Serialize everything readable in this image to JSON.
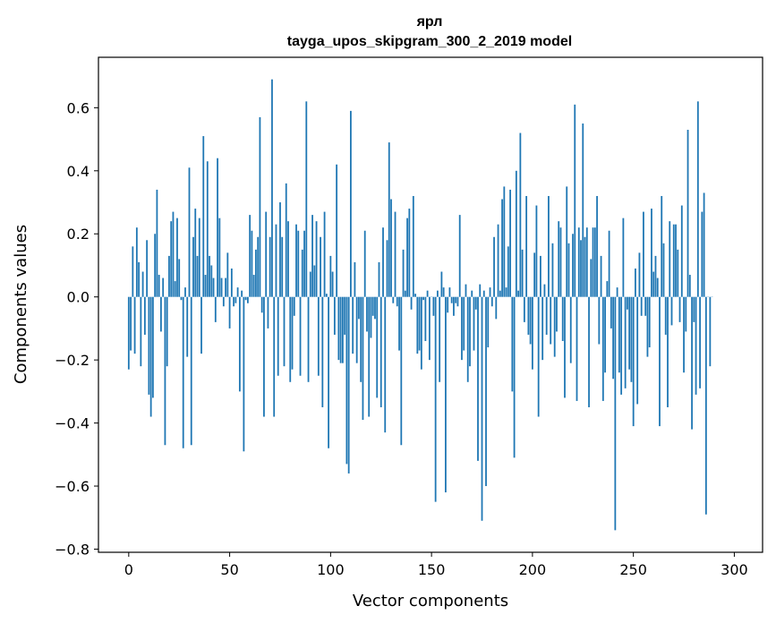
{
  "chart_data": {
    "type": "bar",
    "title": "ярл",
    "subtitle": "tayga_upos_skipgram_300_2_2019 model",
    "xlabel": "Vector components",
    "ylabel": "Components values",
    "xlim": [
      -15,
      314
    ],
    "ylim": [
      -0.81,
      0.76
    ],
    "xticks": [
      0,
      50,
      100,
      150,
      200,
      250,
      300
    ],
    "yticks": [
      -0.8,
      -0.6,
      -0.4,
      -0.2,
      0.0,
      0.2,
      0.4,
      0.6
    ],
    "ytick_labels": [
      "−0.8",
      "−0.6",
      "−0.4",
      "−0.2",
      "0.0",
      "0.2",
      "0.4",
      "0.6"
    ],
    "color": "#1f77b4",
    "values": [
      -0.23,
      -0.17,
      0.16,
      -0.18,
      0.22,
      0.11,
      -0.22,
      0.08,
      -0.12,
      0.18,
      -0.31,
      -0.38,
      -0.32,
      0.2,
      0.34,
      0.07,
      -0.11,
      0.06,
      -0.47,
      -0.22,
      0.13,
      0.24,
      0.27,
      0.05,
      0.25,
      0.12,
      -0.01,
      -0.48,
      0.03,
      -0.19,
      0.41,
      -0.47,
      0.19,
      0.28,
      0.13,
      0.25,
      -0.18,
      0.51,
      0.07,
      0.43,
      0.13,
      0.1,
      0.06,
      -0.08,
      0.44,
      0.25,
      0.06,
      -0.03,
      0.06,
      0.14,
      -0.1,
      0.09,
      -0.03,
      -0.02,
      0.03,
      -0.3,
      0.02,
      -0.49,
      -0.01,
      -0.02,
      0.26,
      0.21,
      0.07,
      0.15,
      0.19,
      0.57,
      -0.05,
      -0.38,
      0.27,
      -0.1,
      0.19,
      0.69,
      -0.38,
      0.23,
      -0.25,
      0.3,
      0.19,
      -0.22,
      0.36,
      0.24,
      -0.27,
      -0.23,
      -0.06,
      0.23,
      0.21,
      -0.25,
      0.15,
      0.21,
      0.62,
      -0.27,
      0.08,
      0.26,
      0.1,
      0.24,
      -0.25,
      0.19,
      -0.35,
      0.27,
      0.01,
      -0.48,
      0.13,
      0.08,
      -0.12,
      0.42,
      -0.2,
      -0.21,
      -0.21,
      -0.12,
      -0.53,
      -0.56,
      0.59,
      -0.18,
      0.11,
      -0.21,
      -0.07,
      -0.27,
      -0.39,
      0.21,
      -0.11,
      -0.38,
      -0.13,
      -0.06,
      -0.07,
      -0.32,
      0.11,
      -0.35,
      0.22,
      -0.43,
      0.18,
      0.49,
      0.31,
      -0.02,
      0.27,
      -0.03,
      -0.17,
      -0.47,
      0.15,
      0.02,
      0.25,
      0.28,
      -0.04,
      0.32,
      0.01,
      -0.18,
      -0.17,
      -0.23,
      -0.01,
      -0.14,
      0.02,
      -0.2,
      0.0,
      -0.06,
      -0.65,
      0.02,
      -0.27,
      0.08,
      0.03,
      -0.62,
      -0.05,
      0.03,
      -0.02,
      -0.06,
      -0.02,
      -0.03,
      0.26,
      -0.2,
      -0.17,
      0.04,
      -0.27,
      -0.22,
      0.02,
      -0.17,
      -0.04,
      -0.52,
      0.04,
      -0.71,
      0.02,
      -0.6,
      -0.16,
      0.03,
      -0.03,
      0.19,
      -0.07,
      0.23,
      0.02,
      0.31,
      0.35,
      0.03,
      0.16,
      0.34,
      -0.3,
      -0.51,
      0.4,
      0.02,
      0.52,
      0.15,
      -0.08,
      0.32,
      -0.12,
      -0.15,
      -0.23,
      0.14,
      0.29,
      -0.38,
      0.13,
      -0.2,
      0.04,
      -0.12,
      0.32,
      -0.15,
      0.17,
      -0.19,
      -0.11,
      0.24,
      0.22,
      -0.14,
      -0.32,
      0.35,
      0.17,
      -0.21,
      0.2,
      0.61,
      -0.33,
      0.22,
      0.18,
      0.55,
      0.19,
      0.22,
      -0.35,
      0.12,
      0.22,
      0.22,
      0.32,
      -0.15,
      0.13,
      -0.33,
      -0.24,
      0.05,
      0.21,
      -0.1,
      -0.26,
      -0.74,
      0.03,
      -0.24,
      -0.31,
      0.25,
      -0.29,
      -0.04,
      -0.23,
      -0.27,
      -0.41,
      0.09,
      -0.34,
      0.14,
      -0.06,
      0.27,
      -0.06,
      -0.19,
      -0.16,
      0.28,
      0.08,
      0.13,
      0.06,
      -0.41,
      0.32,
      0.17,
      -0.12,
      -0.35,
      0.24,
      -0.09,
      0.23,
      0.23,
      0.15,
      -0.08,
      0.29,
      -0.24,
      -0.11,
      0.53,
      0.07,
      -0.42,
      -0.08,
      -0.31,
      0.62,
      -0.29,
      0.27,
      0.33,
      -0.69,
      0.0,
      -0.22,
      0.0
    ]
  }
}
